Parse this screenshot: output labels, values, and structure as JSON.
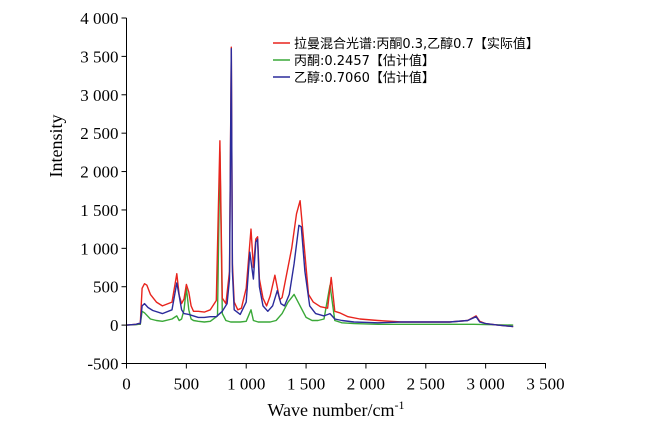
{
  "chart_data": {
    "type": "line",
    "xlabel": "Wave number/cm",
    "xlabel_sup": "-1",
    "ylabel": "Intensity",
    "xlim": [
      0,
      3500
    ],
    "ylim": [
      -500,
      4000
    ],
    "xticks": [
      0,
      500,
      1000,
      1500,
      2000,
      2500,
      3000,
      3500
    ],
    "xtick_labels": [
      "0",
      "500",
      "1 000",
      "1 500",
      "2 000",
      "2 500",
      "3 000",
      "3 500"
    ],
    "yticks": [
      -500,
      0,
      500,
      1000,
      1500,
      2000,
      2500,
      3000,
      3500,
      4000
    ],
    "ytick_labels": [
      "-500",
      "0",
      "500",
      "1 000",
      "1 500",
      "2 000",
      "2 500",
      "3 000",
      "3 500",
      "4 000"
    ],
    "grid": false,
    "legend_position": "top-right",
    "series": [
      {
        "name": "拉曼混合光谱:丙酮0.3,乙醇0.7【实际值】",
        "color": "#e8241d",
        "x": [
          0,
          80,
          100,
          115,
          130,
          150,
          170,
          200,
          250,
          300,
          380,
          420,
          440,
          460,
          480,
          500,
          520,
          540,
          560,
          600,
          650,
          700,
          750,
          780,
          800,
          830,
          860,
          875,
          885,
          900,
          930,
          960,
          1000,
          1040,
          1060,
          1080,
          1095,
          1110,
          1140,
          1170,
          1200,
          1240,
          1280,
          1300,
          1330,
          1380,
          1420,
          1450,
          1480,
          1520,
          1560,
          1620,
          1680,
          1710,
          1740,
          1780,
          1850,
          1950,
          2100,
          2300,
          2500,
          2700,
          2850,
          2920,
          2950,
          3000,
          3100,
          3230
        ],
        "y": [
          0,
          10,
          20,
          20,
          480,
          540,
          520,
          400,
          300,
          250,
          300,
          670,
          390,
          280,
          340,
          530,
          430,
          250,
          180,
          180,
          170,
          200,
          320,
          2400,
          350,
          280,
          700,
          3620,
          800,
          300,
          200,
          220,
          480,
          1250,
          750,
          1120,
          1150,
          600,
          350,
          250,
          380,
          650,
          330,
          360,
          600,
          1000,
          1450,
          1620,
          1100,
          400,
          300,
          240,
          220,
          620,
          180,
          160,
          110,
          80,
          60,
          40,
          40,
          40,
          60,
          120,
          50,
          20,
          0,
          -20
        ]
      },
      {
        "name": "丙酮:0.2457【估计值】",
        "color": "#3aa838",
        "x": [
          0,
          80,
          100,
          115,
          130,
          150,
          200,
          250,
          300,
          380,
          420,
          440,
          460,
          480,
          500,
          520,
          540,
          560,
          600,
          650,
          700,
          760,
          780,
          800,
          830,
          870,
          900,
          950,
          1000,
          1040,
          1060,
          1100,
          1150,
          1200,
          1250,
          1300,
          1350,
          1400,
          1450,
          1500,
          1550,
          1600,
          1650,
          1700,
          1740,
          1800,
          1900,
          2100,
          2500,
          2900,
          3230
        ],
        "y": [
          0,
          5,
          10,
          10,
          180,
          160,
          80,
          60,
          50,
          80,
          120,
          60,
          80,
          200,
          480,
          200,
          80,
          60,
          50,
          40,
          50,
          120,
          2260,
          150,
          60,
          40,
          40,
          40,
          50,
          200,
          60,
          40,
          40,
          40,
          60,
          150,
          300,
          400,
          250,
          100,
          60,
          60,
          80,
          520,
          60,
          30,
          20,
          10,
          10,
          10,
          0
        ]
      },
      {
        "name": "乙醇:0.7060【估计值】",
        "color": "#2b2b9b",
        "x": [
          0,
          80,
          100,
          115,
          130,
          150,
          180,
          220,
          300,
          380,
          420,
          440,
          460,
          480,
          520,
          560,
          600,
          650,
          700,
          750,
          800,
          840,
          860,
          875,
          885,
          900,
          950,
          1000,
          1030,
          1060,
          1080,
          1095,
          1110,
          1140,
          1180,
          1220,
          1260,
          1290,
          1320,
          1360,
          1400,
          1440,
          1460,
          1490,
          1530,
          1580,
          1650,
          1700,
          1740,
          1800,
          1900,
          2100,
          2300,
          2500,
          2700,
          2850,
          2920,
          2950,
          3000,
          3100,
          3230
        ],
        "y": [
          0,
          10,
          20,
          20,
          250,
          280,
          230,
          190,
          150,
          200,
          550,
          380,
          200,
          150,
          140,
          120,
          100,
          100,
          110,
          110,
          180,
          280,
          600,
          3600,
          700,
          200,
          140,
          300,
          950,
          600,
          1080,
          1120,
          500,
          250,
          180,
          250,
          450,
          280,
          250,
          400,
          800,
          1300,
          1280,
          700,
          250,
          150,
          120,
          150,
          80,
          60,
          40,
          30,
          40,
          40,
          40,
          60,
          110,
          40,
          20,
          0,
          -20
        ]
      }
    ]
  }
}
